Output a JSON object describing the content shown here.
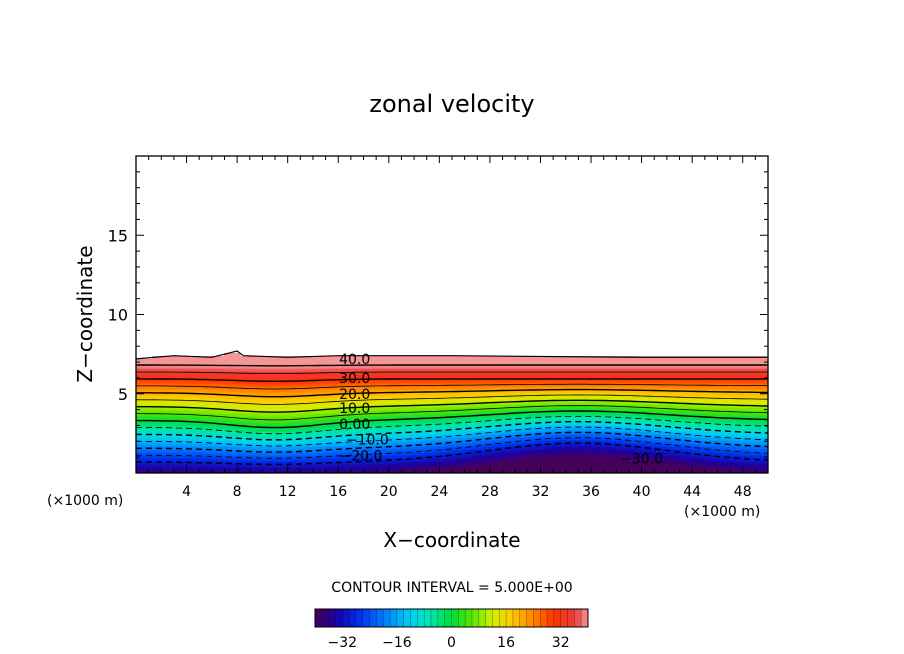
{
  "chart_data": {
    "type": "contour",
    "title": "zonal velocity",
    "xlabel": "X−coordinate",
    "ylabel": "Z−coordinate",
    "x_unit_left": "(×1000 m)",
    "x_unit_right": "(×1000 m)",
    "xlim": [
      0,
      50
    ],
    "ylim": [
      0,
      20
    ],
    "x_ticks": [
      4,
      8,
      12,
      16,
      20,
      24,
      28,
      32,
      36,
      40,
      44,
      48
    ],
    "x_tick_labels": [
      "4",
      "8",
      "12",
      "16",
      "20",
      "24",
      "28",
      "32",
      "36",
      "40",
      "44",
      "48"
    ],
    "y_ticks": [
      5,
      10,
      15
    ],
    "y_tick_labels": [
      "5",
      "10",
      "15"
    ],
    "contour_interval_text": "CONTOUR INTERVAL = 5.000E+00",
    "contour_interval": 5,
    "contour_labels": [
      {
        "text": "40.0",
        "x": 17.3,
        "z": 7.2
      },
      {
        "text": "30.0",
        "x": 17.3,
        "z": 6.0
      },
      {
        "text": "20.0",
        "x": 17.3,
        "z": 5.0
      },
      {
        "text": "10.0",
        "x": 17.3,
        "z": 4.1
      },
      {
        "text": "0.00",
        "x": 17.3,
        "z": 3.1
      },
      {
        "text": "−10.0",
        "x": 18.3,
        "z": 2.1
      },
      {
        "text": "−20.0",
        "x": 17.8,
        "z": 1.1
      },
      {
        "text": "−30.0",
        "x": 40.0,
        "z": 0.9
      }
    ],
    "velocity_field": {
      "description_of_values": "u(x,z) roughly linear in height, from about -35 at the surface to about 45 near the jet top",
      "field_top_z": [
        [
          0,
          7.2
        ],
        [
          3,
          7.4
        ],
        [
          6,
          7.3
        ],
        [
          8,
          7.7
        ],
        [
          8.5,
          7.4
        ],
        [
          12,
          7.3
        ],
        [
          16,
          7.4
        ],
        [
          25,
          7.4
        ],
        [
          40,
          7.3
        ],
        [
          50,
          7.3
        ]
      ],
      "min_value": -35,
      "max_value": 45,
      "lowest_value_region": {
        "x": [
          30,
          42
        ],
        "z": [
          0,
          1
        ]
      },
      "bump_center_x": 35
    },
    "colorbar": {
      "min": -40,
      "max": 40,
      "ticks": [
        -32,
        -16,
        0,
        16,
        32
      ],
      "tick_labels": [
        "−32",
        "−16",
        "0",
        "16",
        "32"
      ]
    },
    "grid": false,
    "colors": {
      "frame": "#000000",
      "background": "#ffffff"
    }
  }
}
